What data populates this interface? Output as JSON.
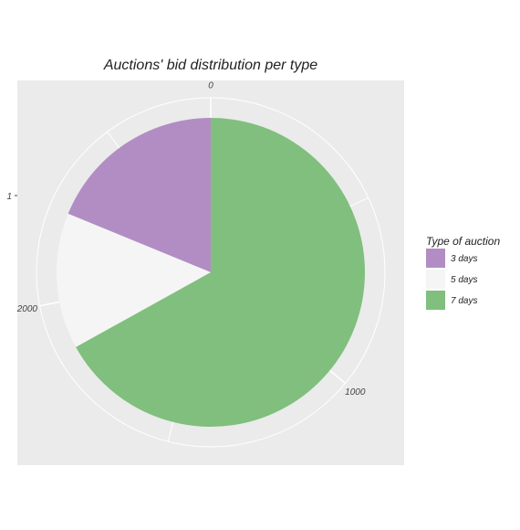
{
  "chart_data": {
    "type": "pie",
    "title": "Auctions' bid distribution per type",
    "categories": [
      "3 days",
      "5 days",
      "7 days"
    ],
    "values": [
      523,
      396,
      1862
    ],
    "colors": [
      "#B28DC4",
      "#F5F5F5",
      "#80BF7D"
    ],
    "theta_ticks": [
      "0",
      "1000",
      "2000"
    ],
    "theta_tick_values": [
      0,
      1000,
      2000
    ],
    "y_tick_label": "1",
    "legend": {
      "title": "Type of auction",
      "position": "right",
      "entries": [
        "3 days",
        "5 days",
        "7 days"
      ]
    },
    "panel_background": "#EBEBEB",
    "grid": true
  }
}
